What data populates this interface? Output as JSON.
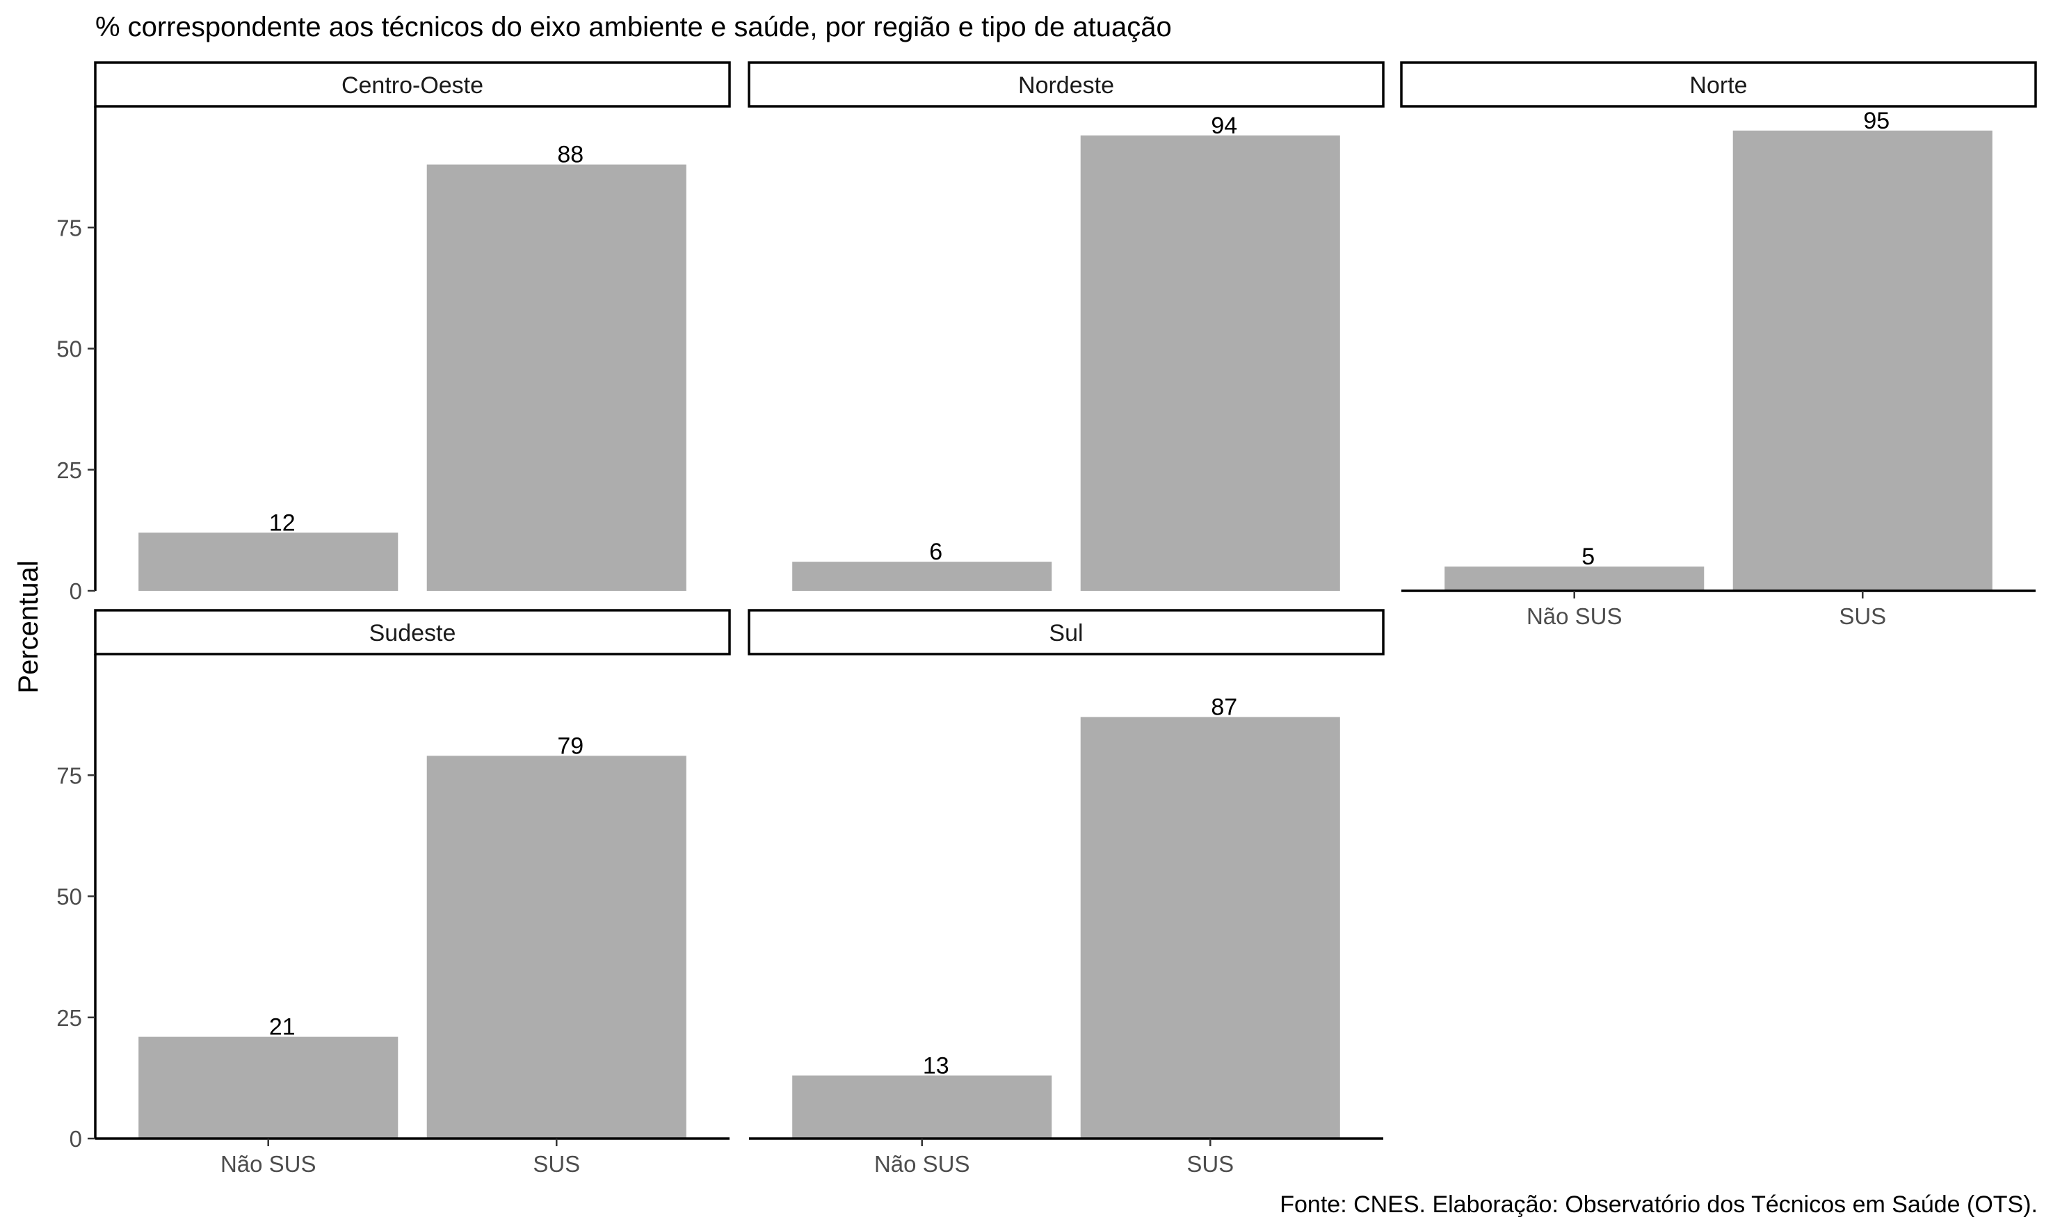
{
  "chart_data": {
    "type": "bar",
    "title": "% correspondente aos técnicos do eixo ambiente e saúde, por região e tipo de atuação",
    "ylabel": "Percentual",
    "xlabel": "",
    "caption": "Fonte: CNES. Elaboração: Observatório dos Técnicos em Saúde (OTS).",
    "categories": [
      "Não SUS",
      "SUS"
    ],
    "ylim": [
      0,
      100
    ],
    "yticks": [
      0,
      25,
      50,
      75
    ],
    "bar_color": "#adadad",
    "grid": false,
    "facets": [
      {
        "name": "Centro-Oeste",
        "values": [
          12,
          88
        ]
      },
      {
        "name": "Nordeste",
        "values": [
          6,
          94
        ]
      },
      {
        "name": "Norte",
        "values": [
          5,
          95
        ]
      },
      {
        "name": "Sudeste",
        "values": [
          21,
          79
        ]
      },
      {
        "name": "Sul",
        "values": [
          13,
          87
        ]
      }
    ]
  }
}
